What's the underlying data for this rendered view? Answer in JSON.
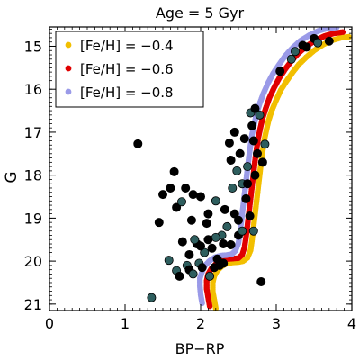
{
  "chart_data": {
    "type": "scatter",
    "title": "Age = 5 Gyr",
    "xlabel": "BP−RP",
    "ylabel": "G",
    "xlim": [
      0,
      4
    ],
    "ylim": [
      21.15,
      14.55
    ],
    "y_inverted": true,
    "x_ticks": [
      "0",
      "1",
      "2",
      "3",
      "4"
    ],
    "y_ticks": [
      "15",
      "16",
      "17",
      "18",
      "19",
      "20",
      "21"
    ],
    "grid": false,
    "legend_position": "top-left",
    "legend": [
      {
        "label": "[Fe/H] = −0.4",
        "color": "#f2bf00"
      },
      {
        "label": "[Fe/H] = −0.6",
        "color": "#e00000"
      },
      {
        "label": "[Fe/H] = −0.8",
        "color": "#9a9ae8"
      }
    ],
    "observed_color": "#000000",
    "observed_highlight": "#2e5e5e",
    "observed": [
      [
        1.17,
        17.27
      ],
      [
        1.35,
        20.85
      ],
      [
        1.45,
        19.1
      ],
      [
        1.5,
        18.45
      ],
      [
        1.58,
        19.98
      ],
      [
        1.6,
        18.3
      ],
      [
        1.65,
        17.92
      ],
      [
        1.68,
        20.22
      ],
      [
        1.68,
        18.75
      ],
      [
        1.72,
        20.35
      ],
      [
        1.75,
        18.62
      ],
      [
        1.76,
        19.55
      ],
      [
        1.8,
        18.3
      ],
      [
        1.82,
        20.1
      ],
      [
        1.85,
        20.2
      ],
      [
        1.88,
        19.05
      ],
      [
        1.9,
        20.3
      ],
      [
        1.9,
        18.45
      ],
      [
        1.95,
        19.6
      ],
      [
        1.98,
        20.05
      ],
      [
        2.0,
        18.5
      ],
      [
        2.02,
        20.15
      ],
      [
        2.05,
        19.8
      ],
      [
        2.08,
        19.12
      ],
      [
        2.1,
        18.9
      ],
      [
        2.12,
        20.35
      ],
      [
        2.15,
        19.7
      ],
      [
        2.18,
        20.15
      ],
      [
        2.2,
        18.6
      ],
      [
        2.22,
        19.95
      ],
      [
        2.25,
        20.1
      ],
      [
        2.28,
        19.4
      ],
      [
        2.3,
        20.05
      ],
      [
        2.32,
        18.8
      ],
      [
        2.35,
        19.2
      ],
      [
        2.38,
        17.25
      ],
      [
        2.4,
        17.65
      ],
      [
        2.42,
        18.3
      ],
      [
        2.45,
        17.0
      ],
      [
        2.45,
        18.9
      ],
      [
        2.48,
        17.9
      ],
      [
        2.5,
        19.05
      ],
      [
        2.52,
        17.5
      ],
      [
        2.55,
        18.2
      ],
      [
        2.58,
        17.15
      ],
      [
        2.6,
        18.55
      ],
      [
        2.62,
        17.8
      ],
      [
        2.65,
        18.95
      ],
      [
        2.68,
        16.85
      ],
      [
        2.7,
        19.3
      ],
      [
        2.72,
        18.0
      ],
      [
        2.75,
        17.5
      ],
      [
        2.78,
        16.6
      ],
      [
        2.8,
        20.48
      ],
      [
        2.82,
        17.7
      ],
      [
        2.85,
        17.28
      ],
      [
        2.4,
        19.62
      ],
      [
        2.3,
        19.6
      ],
      [
        2.2,
        19.45
      ],
      [
        2.1,
        19.5
      ],
      [
        2.0,
        19.65
      ],
      [
        1.92,
        19.5
      ],
      [
        1.85,
        19.85
      ],
      [
        2.5,
        19.4
      ],
      [
        2.55,
        19.3
      ],
      [
        2.62,
        18.2
      ],
      [
        2.7,
        17.2
      ],
      [
        2.66,
        16.55
      ],
      [
        2.72,
        16.45
      ],
      [
        3.05,
        15.58
      ],
      [
        3.2,
        15.3
      ],
      [
        3.4,
        15.02
      ],
      [
        3.5,
        14.82
      ],
      [
        3.55,
        14.92
      ],
      [
        3.7,
        14.88
      ],
      [
        3.35,
        14.98
      ],
      [
        3.25,
        15.12
      ]
    ],
    "series": [
      {
        "name": "[Fe/H] = −0.4",
        "color": "#f2bf00",
        "points": [
          [
            2.2,
            21.1
          ],
          [
            2.18,
            20.9
          ],
          [
            2.16,
            20.7
          ],
          [
            2.16,
            20.5
          ],
          [
            2.18,
            20.35
          ],
          [
            2.22,
            20.22
          ],
          [
            2.28,
            20.12
          ],
          [
            2.34,
            20.06
          ],
          [
            2.42,
            20.03
          ],
          [
            2.5,
            20.02
          ],
          [
            2.56,
            20.0
          ],
          [
            2.62,
            19.92
          ],
          [
            2.66,
            19.75
          ],
          [
            2.68,
            19.5
          ],
          [
            2.7,
            19.2
          ],
          [
            2.72,
            18.9
          ],
          [
            2.74,
            18.6
          ],
          [
            2.76,
            18.3
          ],
          [
            2.78,
            18.0
          ],
          [
            2.8,
            17.7
          ],
          [
            2.82,
            17.45
          ],
          [
            2.84,
            17.2
          ],
          [
            2.87,
            16.95
          ],
          [
            2.9,
            16.72
          ],
          [
            2.94,
            16.5
          ],
          [
            3.0,
            16.25
          ],
          [
            3.06,
            16.02
          ],
          [
            3.14,
            15.8
          ],
          [
            3.22,
            15.6
          ],
          [
            3.3,
            15.42
          ],
          [
            3.4,
            15.25
          ],
          [
            3.5,
            15.1
          ],
          [
            3.62,
            14.96
          ],
          [
            3.74,
            14.86
          ],
          [
            3.86,
            14.8
          ],
          [
            3.96,
            14.78
          ]
        ]
      },
      {
        "name": "[Fe/H] = −0.6",
        "color": "#e00000",
        "points": [
          [
            2.12,
            21.05
          ],
          [
            2.1,
            20.85
          ],
          [
            2.08,
            20.65
          ],
          [
            2.08,
            20.45
          ],
          [
            2.1,
            20.3
          ],
          [
            2.14,
            20.18
          ],
          [
            2.2,
            20.07
          ],
          [
            2.27,
            19.99
          ],
          [
            2.35,
            19.95
          ],
          [
            2.43,
            19.94
          ],
          [
            2.5,
            19.93
          ],
          [
            2.55,
            19.85
          ],
          [
            2.58,
            19.68
          ],
          [
            2.6,
            19.45
          ],
          [
            2.62,
            19.15
          ],
          [
            2.64,
            18.85
          ],
          [
            2.66,
            18.55
          ],
          [
            2.68,
            18.25
          ],
          [
            2.7,
            17.95
          ],
          [
            2.72,
            17.65
          ],
          [
            2.74,
            17.4
          ],
          [
            2.76,
            17.15
          ],
          [
            2.79,
            16.9
          ],
          [
            2.82,
            16.67
          ],
          [
            2.86,
            16.45
          ],
          [
            2.91,
            16.2
          ],
          [
            2.97,
            15.97
          ],
          [
            3.04,
            15.74
          ],
          [
            3.12,
            15.53
          ],
          [
            3.2,
            15.34
          ],
          [
            3.3,
            15.15
          ],
          [
            3.4,
            15.0
          ],
          [
            3.52,
            14.86
          ],
          [
            3.64,
            14.76
          ],
          [
            3.76,
            14.7
          ],
          [
            3.88,
            14.67
          ]
        ]
      },
      {
        "name": "[Fe/H] = −0.8",
        "color": "#9a9ae8",
        "points": [
          [
            2.02,
            20.98
          ],
          [
            2.0,
            20.78
          ],
          [
            1.99,
            20.58
          ],
          [
            1.99,
            20.4
          ],
          [
            2.02,
            20.24
          ],
          [
            2.06,
            20.1
          ],
          [
            2.12,
            19.99
          ],
          [
            2.19,
            19.91
          ],
          [
            2.27,
            19.87
          ],
          [
            2.34,
            19.86
          ],
          [
            2.41,
            19.84
          ],
          [
            2.46,
            19.76
          ],
          [
            2.5,
            19.58
          ],
          [
            2.52,
            19.35
          ],
          [
            2.54,
            19.05
          ],
          [
            2.56,
            18.75
          ],
          [
            2.58,
            18.45
          ],
          [
            2.6,
            18.15
          ],
          [
            2.62,
            17.85
          ],
          [
            2.64,
            17.56
          ],
          [
            2.66,
            17.3
          ],
          [
            2.68,
            17.05
          ],
          [
            2.71,
            16.8
          ],
          [
            2.74,
            16.57
          ],
          [
            2.78,
            16.34
          ],
          [
            2.83,
            16.1
          ],
          [
            2.89,
            15.86
          ],
          [
            2.96,
            15.63
          ],
          [
            3.04,
            15.42
          ],
          [
            3.12,
            15.22
          ],
          [
            3.22,
            15.03
          ],
          [
            3.32,
            14.87
          ],
          [
            3.44,
            14.74
          ],
          [
            3.56,
            14.64
          ],
          [
            3.68,
            14.58
          ],
          [
            3.8,
            14.56
          ]
        ]
      }
    ]
  }
}
